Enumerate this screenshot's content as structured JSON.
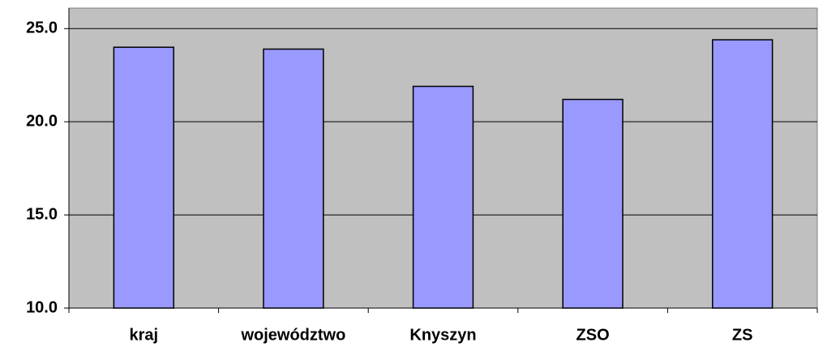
{
  "chart_data": {
    "type": "bar",
    "categories": [
      "kraj",
      "województwo",
      "Knyszyn",
      "ZSO",
      "ZS"
    ],
    "values": [
      24.0,
      23.9,
      21.9,
      21.2,
      24.4
    ],
    "color": "#9999ff",
    "ylim": [
      10,
      26.1
    ],
    "yticks": [
      {
        "value": 10,
        "label": "10.0"
      },
      {
        "value": 15,
        "label": "15.0"
      },
      {
        "value": 20,
        "label": "20.0"
      },
      {
        "value": 25,
        "label": "25.0"
      }
    ],
    "grid": true
  }
}
